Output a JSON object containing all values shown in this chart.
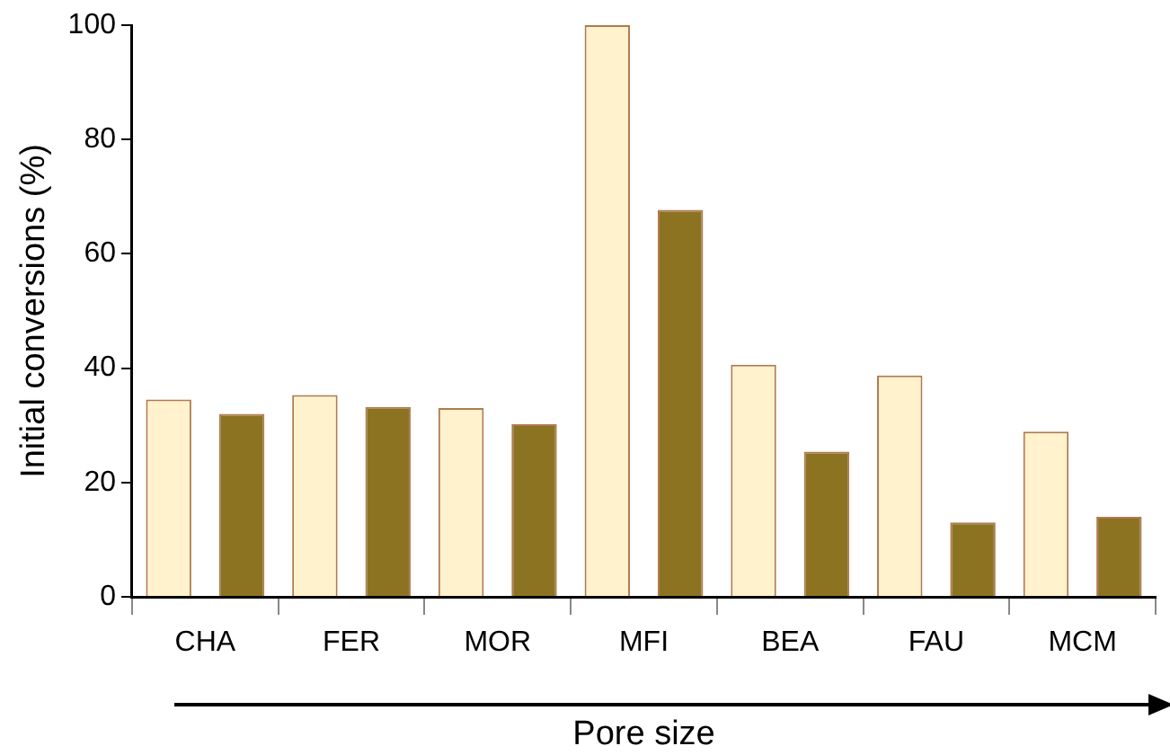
{
  "chart_data": {
    "type": "bar",
    "xlabel": "Pore size",
    "ylabel": "Initial conversions (%)",
    "categories": [
      "CHA",
      "FER",
      "MOR",
      "MFI",
      "BEA",
      "FAU",
      "MCM"
    ],
    "series": [
      {
        "color": "#fff2cc",
        "values": [
          34.5,
          35.3,
          33,
          100,
          40.6,
          38.7,
          28.9
        ]
      },
      {
        "color": "#8b7322",
        "values": [
          32,
          33.2,
          30.2,
          67.7,
          25.4,
          13,
          14
        ]
      }
    ],
    "ylim": [
      0,
      100
    ],
    "yticks": [
      0,
      20,
      40,
      60,
      80,
      100
    ],
    "grid": false,
    "legend": false
  }
}
